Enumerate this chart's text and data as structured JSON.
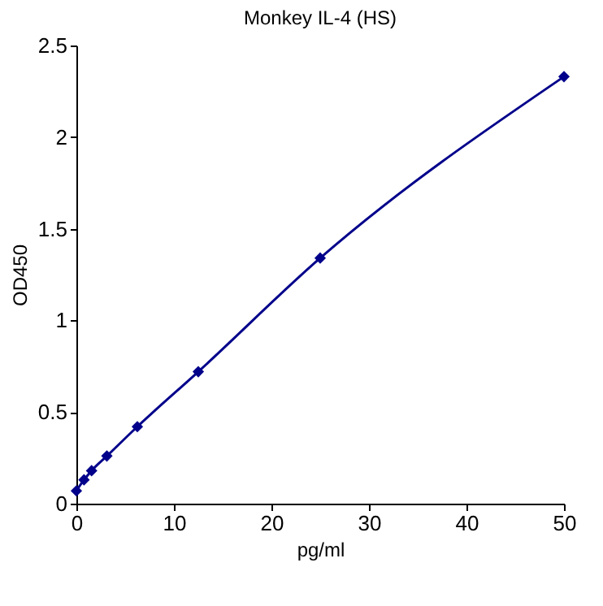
{
  "chart_data": {
    "type": "line",
    "title": "Monkey IL-4 (HS)",
    "xlabel": "pg/ml",
    "ylabel": "OD450",
    "x": [
      0,
      0.78,
      1.56,
      3.125,
      6.25,
      12.5,
      25,
      50
    ],
    "series": [
      {
        "color": "#00008b",
        "values": [
          0.07,
          0.13,
          0.18,
          0.26,
          0.42,
          0.72,
          1.34,
          2.33
        ]
      }
    ],
    "xlim": [
      0,
      50
    ],
    "xticks": [
      0,
      10,
      20,
      30,
      40,
      50
    ],
    "ylim": [
      0,
      2.5
    ],
    "yticks": [
      0,
      0.5,
      1,
      1.5,
      2,
      2.5
    ],
    "marker": "diamond",
    "line_style": "solid",
    "grid": false,
    "legend": false
  }
}
